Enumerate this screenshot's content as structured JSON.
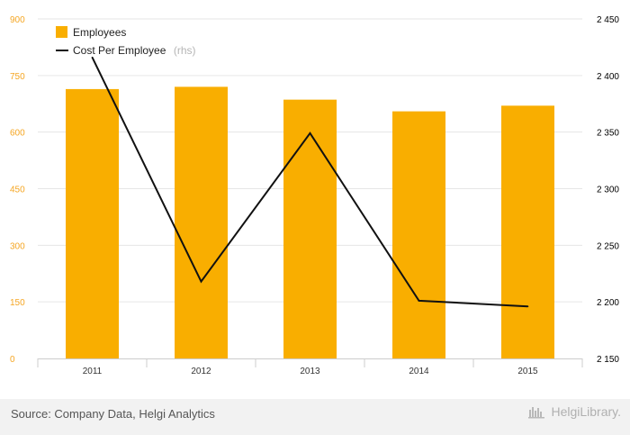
{
  "chart_data": {
    "type": "bar",
    "categories": [
      "2011",
      "2012",
      "2013",
      "2014",
      "2015"
    ],
    "series": [
      {
        "name": "Employees",
        "type": "bar",
        "axis": "left",
        "values": [
          714,
          720,
          686,
          655,
          670
        ]
      },
      {
        "name": "Cost Per Employee",
        "type": "line",
        "axis": "right",
        "values": [
          2416,
          2218,
          2349,
          2201,
          2196
        ]
      }
    ],
    "left_axis": {
      "ylim": [
        0,
        900
      ],
      "ticks": [
        0,
        150,
        300,
        450,
        600,
        750,
        900
      ],
      "tick_labels": [
        "0",
        "150",
        "300",
        "450",
        "600",
        "750",
        "900"
      ]
    },
    "right_axis": {
      "ylim": [
        2150,
        2450
      ],
      "ticks": [
        2150,
        2200,
        2250,
        2300,
        2350,
        2400,
        2450
      ],
      "tick_labels": [
        "2 150",
        "2 200",
        "2 250",
        "2 300",
        "2 350",
        "2 400",
        "2 450"
      ]
    },
    "legend": {
      "placement": "top-left",
      "items": [
        {
          "label": "Employees",
          "suffix": "",
          "symbol": "square"
        },
        {
          "label": "Cost Per Employee",
          "suffix": "(rhs)",
          "symbol": "line"
        }
      ]
    },
    "grid": true,
    "colors": {
      "bar": "#f9ae00",
      "line": "#111111",
      "left_ticks": "#f5a623",
      "right_ticks": "#000000",
      "grid": "#e6e6e6"
    }
  },
  "footer": {
    "source": "Source: Company Data, Helgi Analytics",
    "brand": "HelgiLibrary."
  }
}
